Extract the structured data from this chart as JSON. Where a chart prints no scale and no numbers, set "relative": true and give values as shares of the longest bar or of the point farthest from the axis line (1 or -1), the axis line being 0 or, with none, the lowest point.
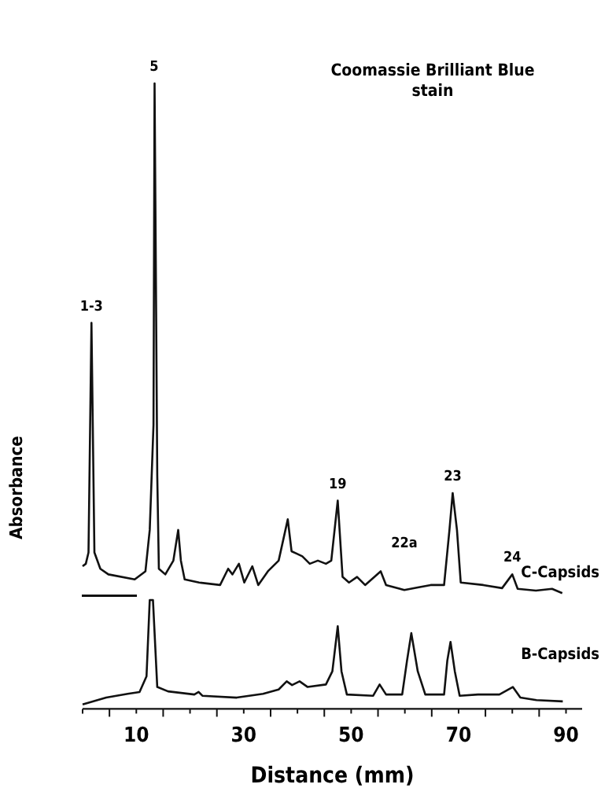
{
  "chart_data": {
    "type": "line",
    "relative": true,
    "title": "Coomassie Brilliant Blue stain",
    "xlabel": "Distance (mm)",
    "ylabel": "Absorbance",
    "xlim": [
      0,
      93
    ],
    "xticks": [
      10,
      30,
      50,
      70,
      90
    ],
    "annotations": [
      {
        "text": "1-3",
        "x": 1.65,
        "y": 0.617
      },
      {
        "text": "5",
        "x": 13.3,
        "y": 1
      },
      {
        "text": "19",
        "x": 47.5,
        "y": 0.333
      },
      "22a",
      {
        "text": "23",
        "x": 68.9,
        "y": 0.345
      },
      {
        "text": "24",
        "x": 80,
        "y": 0.215
      }
    ],
    "series": [
      {
        "name": "C-Capsids",
        "color": "#111111",
        "x": [
          0,
          0.6,
          1.1,
          1.65,
          2.2,
          3.3,
          4.8,
          9.7,
          11.7,
          12.5,
          13.2,
          13.4,
          13.9,
          14.2,
          15.4,
          16.9,
          17.8,
          18.3,
          19.0,
          21.7,
          25.6,
          27.1,
          27.9,
          29.1,
          30.1,
          31.6,
          32.7,
          34.5,
          36.5,
          38.2,
          38.9,
          39.9,
          40.9,
          42.3,
          43.8,
          45.3,
          46.3,
          47.5,
          48.4,
          49.6,
          51.1,
          52.6,
          55.5,
          56.5,
          59.9,
          62.4,
          64.8,
          67.3,
          68.3,
          68.9,
          69.7,
          70.4,
          74.6,
          78.1,
          80.0,
          81.0,
          84.4,
          87.4,
          89.3
        ],
        "values": [
          0.228,
          0.232,
          0.25,
          0.617,
          0.25,
          0.224,
          0.215,
          0.207,
          0.22,
          0.286,
          0.454,
          1,
          0.373,
          0.224,
          0.215,
          0.237,
          0.286,
          0.237,
          0.207,
          0.202,
          0.198,
          0.224,
          0.215,
          0.232,
          0.202,
          0.228,
          0.198,
          0.22,
          0.237,
          0.303,
          0.252,
          0.248,
          0.244,
          0.232,
          0.237,
          0.232,
          0.237,
          0.333,
          0.211,
          0.202,
          0.211,
          0.198,
          0.22,
          0.198,
          0.19,
          0.194,
          0.198,
          0.198,
          0.286,
          0.345,
          0.286,
          0.202,
          0.198,
          0.193,
          0.215,
          0.192,
          0.189,
          0.192,
          0.185
        ]
      },
      {
        "name": "B-Capsids",
        "color": "#111111",
        "x": [
          0.0,
          4.4,
          8.4,
          10.6,
          11.9,
          12.5,
          13.1,
          13.9,
          15.9,
          20.8,
          21.6,
          22.3,
          28.7,
          33.6,
          36.5,
          38.0,
          39.0,
          40.4,
          41.9,
          45.3,
          46.5,
          47.5,
          48.2,
          49.2,
          54.1,
          55.3,
          56.5,
          59.5,
          60.4,
          61.2,
          62.4,
          63.8,
          67.3,
          67.9,
          68.5,
          69.3,
          70.2,
          73.6,
          77.6,
          80.1,
          81.5,
          84.5,
          89.4
        ],
        "values": [
          0.007,
          0.018,
          0.024,
          0.027,
          0.052,
          0.174,
          0.174,
          0.035,
          0.028,
          0.023,
          0.027,
          0.021,
          0.018,
          0.024,
          0.031,
          0.044,
          0.038,
          0.044,
          0.035,
          0.039,
          0.06,
          0.132,
          0.06,
          0.023,
          0.021,
          0.039,
          0.023,
          0.023,
          0.077,
          0.121,
          0.06,
          0.023,
          0.023,
          0.077,
          0.107,
          0.06,
          0.021,
          0.023,
          0.023,
          0.035,
          0.018,
          0.014,
          0.012
        ]
      }
    ]
  }
}
